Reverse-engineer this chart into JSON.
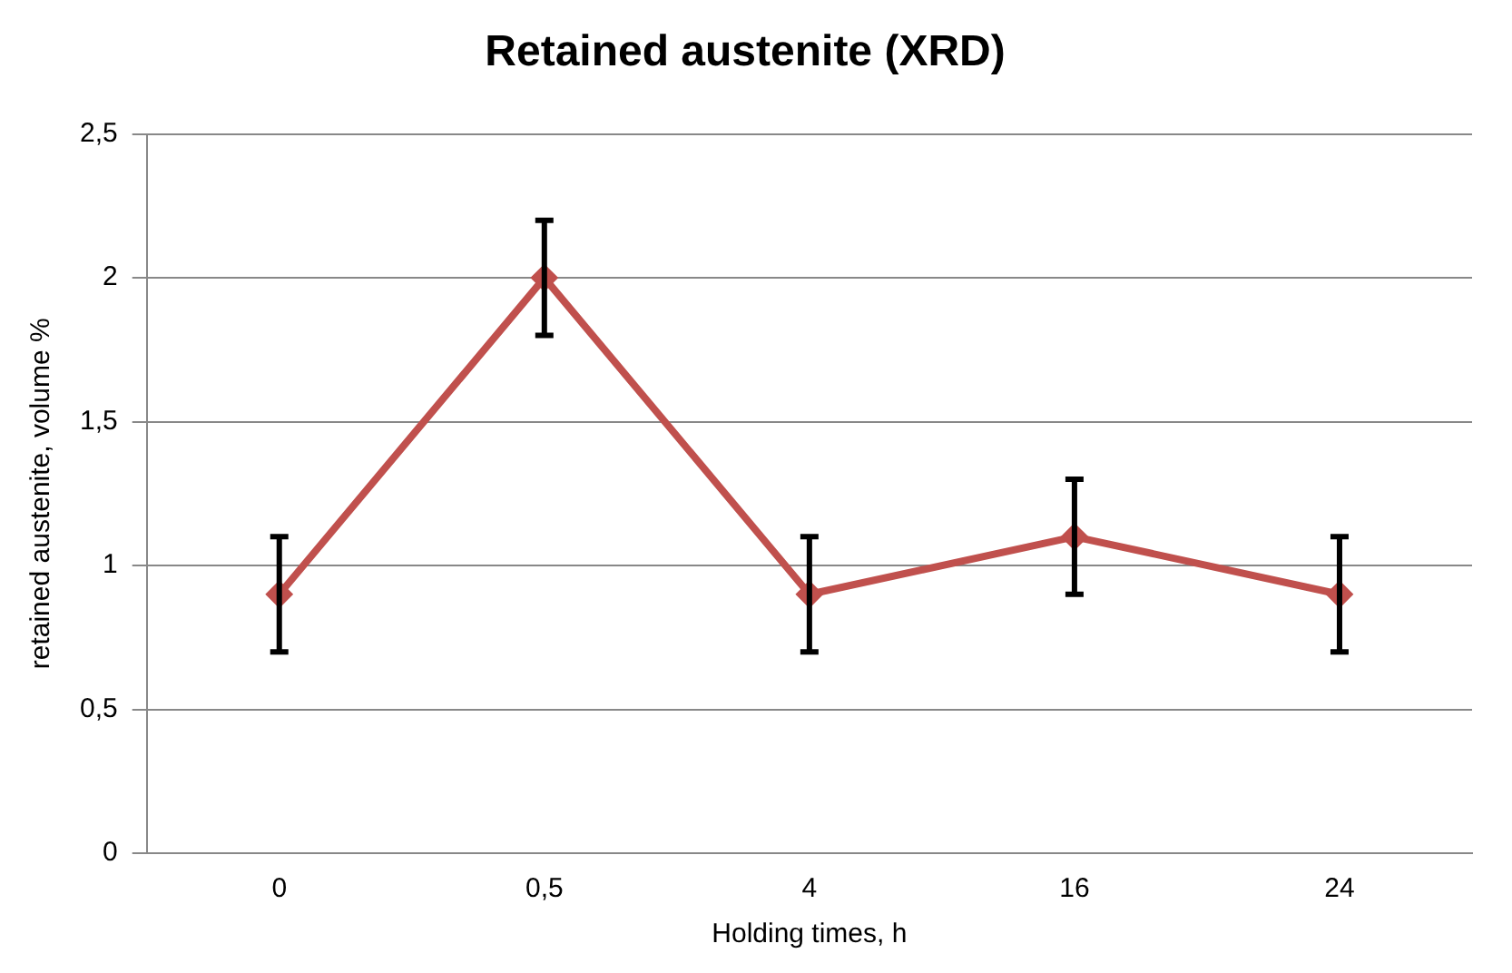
{
  "chart_data": {
    "type": "line",
    "title": "Retained austenite (XRD)",
    "xlabel": "Holding times, h",
    "ylabel": "retained austenite, volume %",
    "categories": [
      "0",
      "0,5",
      "4",
      "16",
      "24"
    ],
    "series": [
      {
        "color": "#c0504d",
        "values": [
          0.9,
          2.0,
          0.9,
          1.1,
          0.9
        ],
        "errors": [
          0.2,
          0.2,
          0.2,
          0.2,
          0.2
        ]
      }
    ],
    "ylim": [
      0,
      2.5
    ],
    "yticks": [
      0,
      {
        "value": 0.5,
        "label": "0,5"
      },
      1,
      {
        "value": 1.5,
        "label": "1,5"
      },
      2,
      {
        "value": 2.5,
        "label": "2,5"
      }
    ],
    "grid": "y",
    "legend": false,
    "marker": "diamond",
    "line_style": "solid"
  }
}
